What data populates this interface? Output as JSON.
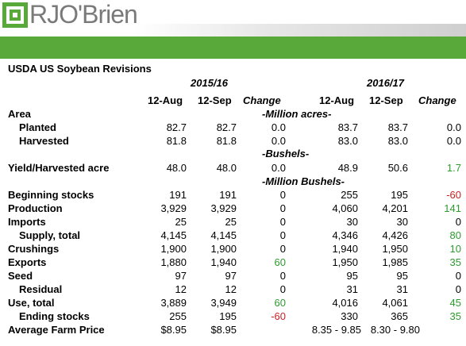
{
  "brand": {
    "name": "RJO'Brien",
    "mark_color": "#58a83a",
    "band_color": "#58a83a"
  },
  "title": "USDA US Soybean Revisions",
  "years": [
    "2015/16",
    "2016/17"
  ],
  "columns": [
    "12-Aug",
    "12-Sep",
    "Change",
    "12-Aug",
    "12-Sep",
    "Change"
  ],
  "rows": [
    {
      "label": "Area",
      "type": "head",
      "section": "-Million acres-"
    },
    {
      "label": "Planted",
      "indent": true,
      "values": [
        "82.7",
        "82.7",
        "0.0",
        "83.7",
        "83.7",
        "0.0"
      ],
      "colors": [
        "",
        "",
        "",
        "",
        "",
        ""
      ]
    },
    {
      "label": "Harvested",
      "indent": true,
      "values": [
        "81.8",
        "81.8",
        "0.0",
        "83.0",
        "83.0",
        "0.0"
      ],
      "colors": [
        "",
        "",
        "",
        "",
        "",
        ""
      ]
    },
    {
      "label": "",
      "type": "section",
      "section": "-Bushels-"
    },
    {
      "label": "Yield/Harvested acre",
      "values": [
        "48.0",
        "48.0",
        "0.0",
        "48.9",
        "50.6",
        "1.7"
      ],
      "colors": [
        "",
        "",
        "",
        "",
        "",
        "green"
      ]
    },
    {
      "label": "",
      "type": "section",
      "section": "-Million Bushels-"
    },
    {
      "label": "Beginning stocks",
      "values": [
        "191",
        "191",
        "0",
        "255",
        "195",
        "-60"
      ],
      "colors": [
        "",
        "",
        "",
        "",
        "",
        "red"
      ]
    },
    {
      "label": "Production",
      "values": [
        "3,929",
        "3,929",
        "0",
        "4,060",
        "4,201",
        "141"
      ],
      "colors": [
        "",
        "",
        "",
        "",
        "",
        "green"
      ]
    },
    {
      "label": "Imports",
      "values": [
        "25",
        "25",
        "0",
        "30",
        "30",
        "0"
      ],
      "colors": [
        "",
        "",
        "",
        "",
        "",
        ""
      ]
    },
    {
      "label": "Supply, total",
      "indent": true,
      "values": [
        "4,145",
        "4,145",
        "0",
        "4,346",
        "4,426",
        "80"
      ],
      "colors": [
        "",
        "",
        "",
        "",
        "",
        "green"
      ]
    },
    {
      "label": "Crushings",
      "values": [
        "1,900",
        "1,900",
        "0",
        "1,940",
        "1,950",
        "10"
      ],
      "colors": [
        "",
        "",
        "",
        "",
        "",
        "green"
      ]
    },
    {
      "label": "Exports",
      "values": [
        "1,880",
        "1,940",
        "60",
        "1,950",
        "1,985",
        "35"
      ],
      "colors": [
        "",
        "",
        "green",
        "",
        "",
        "green"
      ]
    },
    {
      "label": "Seed",
      "values": [
        "97",
        "97",
        "0",
        "95",
        "95",
        "0"
      ],
      "colors": [
        "",
        "",
        "",
        "",
        "",
        ""
      ]
    },
    {
      "label": "Residual",
      "indent": true,
      "values": [
        "12",
        "12",
        "0",
        "31",
        "31",
        "0"
      ],
      "colors": [
        "",
        "",
        "",
        "",
        "",
        ""
      ]
    },
    {
      "label": "Use, total",
      "values": [
        "3,889",
        "3,949",
        "60",
        "4,016",
        "4,061",
        "45"
      ],
      "colors": [
        "",
        "",
        "green",
        "",
        "",
        "green"
      ]
    },
    {
      "label": "Ending stocks",
      "indent": true,
      "values": [
        "255",
        "195",
        "-60",
        "330",
        "365",
        "35"
      ],
      "colors": [
        "",
        "",
        "red",
        "",
        "",
        "green"
      ]
    },
    {
      "label": "Average Farm Price",
      "type": "price",
      "values": [
        "$8.95",
        "$8.95",
        "",
        "8.35 - 9.85",
        "8.30 - 9.80",
        ""
      ],
      "colors": [
        "",
        "",
        "",
        "",
        "",
        ""
      ]
    }
  ]
}
